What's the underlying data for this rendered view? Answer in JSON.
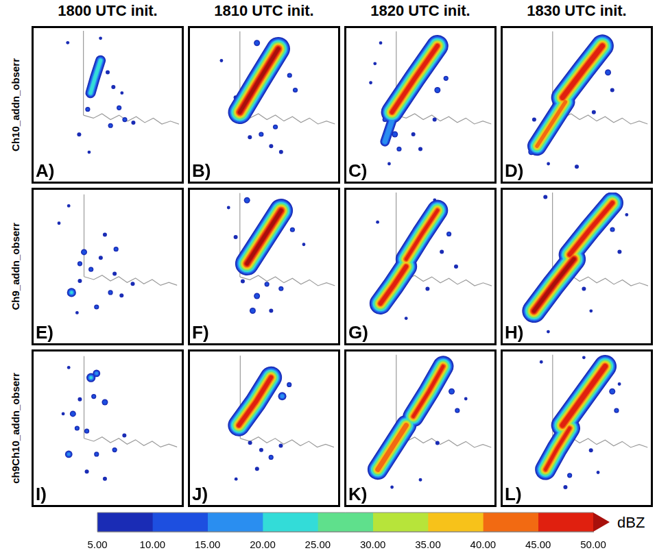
{
  "column_titles": [
    "1800 UTC init.",
    "1810 UTC init.",
    "1820 UTC init.",
    "1830 UTC init."
  ],
  "row_labels": [
    "Ch10_addn_obserr",
    "Ch9_addn_obserr",
    "ch9Ch10_addn_obserr"
  ],
  "map_lines": [
    {
      "x": [
        33,
        33
      ],
      "y": [
        100,
        43
      ]
    },
    {
      "x": [
        33,
        40,
        46,
        52,
        58,
        64,
        70,
        76,
        82,
        88,
        94,
        100
      ],
      "y": [
        43,
        41,
        44,
        40,
        43,
        39,
        42,
        38,
        41,
        37,
        39,
        37
      ]
    }
  ],
  "colorbar": {
    "type": "bar",
    "orientation": "horizontal",
    "title": "dBZ",
    "levels": [
      5,
      10,
      15,
      20,
      25,
      30,
      35,
      40,
      45,
      50
    ],
    "colors": [
      "#1a2cb5",
      "#1d4fe0",
      "#2a8ef0",
      "#33dcd8",
      "#5fe08c",
      "#b7e43a",
      "#f7c21a",
      "#f26a12",
      "#e0200f",
      "#a8100c"
    ],
    "xlim": [
      5,
      50
    ],
    "xticks": [
      {
        "value": 5,
        "label": "5.00"
      },
      {
        "value": 10,
        "label": "10.00"
      },
      {
        "value": 15,
        "label": "15.00"
      },
      {
        "value": 20,
        "label": "20.00"
      },
      {
        "value": 25,
        "label": "25.00"
      },
      {
        "value": 30,
        "label": "30.00"
      },
      {
        "value": 35,
        "label": "35.00"
      },
      {
        "value": 40,
        "label": "40.00"
      },
      {
        "value": 45,
        "label": "45.00"
      },
      {
        "value": 50,
        "label": "50.00"
      }
    ]
  },
  "chart_data": [
    {
      "type": "scatter",
      "panel": "A)",
      "xlim": [
        0,
        100
      ],
      "ylim": [
        0,
        100
      ],
      "tick_labels": false,
      "bands": [
        {
          "x": [
            38,
            41,
            45
          ],
          "y": [
            58,
            68,
            80
          ],
          "max_dbz": 22
        }
      ],
      "cells": [
        {
          "x": 22,
          "y": 92,
          "dbz": 8
        },
        {
          "x": 45,
          "y": 95,
          "dbz": 8
        },
        {
          "x": 36,
          "y": 47,
          "dbz": 12
        },
        {
          "x": 54,
          "y": 62,
          "dbz": 10
        },
        {
          "x": 50,
          "y": 72,
          "dbz": 10
        },
        {
          "x": 58,
          "y": 48,
          "dbz": 12
        },
        {
          "x": 62,
          "y": 40,
          "dbz": 12
        },
        {
          "x": 52,
          "y": 36,
          "dbz": 12
        },
        {
          "x": 68,
          "y": 38,
          "dbz": 10
        },
        {
          "x": 30,
          "y": 30,
          "dbz": 10
        },
        {
          "x": 37,
          "y": 18,
          "dbz": 8
        },
        {
          "x": 60,
          "y": 58,
          "dbz": 8
        }
      ]
    },
    {
      "type": "scatter",
      "panel": "B)",
      "xlim": [
        0,
        100
      ],
      "ylim": [
        0,
        100
      ],
      "tick_labels": false,
      "bands": [
        {
          "x": [
            33,
            46,
            60
          ],
          "y": [
            45,
            66,
            88
          ],
          "max_dbz": 52
        }
      ],
      "cells": [
        {
          "x": 45,
          "y": 92,
          "dbz": 15
        },
        {
          "x": 68,
          "y": 70,
          "dbz": 12
        },
        {
          "x": 72,
          "y": 60,
          "dbz": 12
        },
        {
          "x": 58,
          "y": 35,
          "dbz": 12
        },
        {
          "x": 48,
          "y": 30,
          "dbz": 12
        },
        {
          "x": 40,
          "y": 28,
          "dbz": 10
        },
        {
          "x": 55,
          "y": 22,
          "dbz": 10
        },
        {
          "x": 62,
          "y": 18,
          "dbz": 10
        },
        {
          "x": 20,
          "y": 80,
          "dbz": 8
        },
        {
          "x": 30,
          "y": 55,
          "dbz": 10
        }
      ]
    },
    {
      "type": "scatter",
      "panel": "C)",
      "xlim": [
        0,
        100
      ],
      "ylim": [
        0,
        100
      ],
      "tick_labels": false,
      "bands": [
        {
          "x": [
            30,
            46,
            62
          ],
          "y": [
            45,
            68,
            90
          ],
          "max_dbz": 48
        },
        {
          "x": [
            25,
            32
          ],
          "y": [
            25,
            45
          ],
          "max_dbz": 20
        }
      ],
      "cells": [
        {
          "x": 62,
          "y": 60,
          "dbz": 15
        },
        {
          "x": 68,
          "y": 68,
          "dbz": 12
        },
        {
          "x": 25,
          "y": 40,
          "dbz": 12
        },
        {
          "x": 32,
          "y": 30,
          "dbz": 15
        },
        {
          "x": 35,
          "y": 20,
          "dbz": 12
        },
        {
          "x": 45,
          "y": 30,
          "dbz": 10
        },
        {
          "x": 50,
          "y": 20,
          "dbz": 10
        },
        {
          "x": 60,
          "y": 40,
          "dbz": 10
        },
        {
          "x": 22,
          "y": 92,
          "dbz": 8
        },
        {
          "x": 15,
          "y": 65,
          "dbz": 8
        },
        {
          "x": 18,
          "y": 78,
          "dbz": 8
        },
        {
          "x": 28,
          "y": 10,
          "dbz": 8
        }
      ]
    },
    {
      "type": "scatter",
      "panel": "D)",
      "xlim": [
        0,
        100
      ],
      "ylim": [
        0,
        100
      ],
      "tick_labels": false,
      "bands": [
        {
          "x": [
            40,
            55,
            68
          ],
          "y": [
            55,
            74,
            90
          ],
          "max_dbz": 50
        },
        {
          "x": [
            22,
            32,
            42
          ],
          "y": [
            22,
            37,
            52
          ],
          "max_dbz": 42
        }
      ],
      "cells": [
        {
          "x": 72,
          "y": 72,
          "dbz": 15
        },
        {
          "x": 75,
          "y": 60,
          "dbz": 10
        },
        {
          "x": 20,
          "y": 40,
          "dbz": 10
        },
        {
          "x": 18,
          "y": 18,
          "dbz": 15
        },
        {
          "x": 30,
          "y": 10,
          "dbz": 8
        },
        {
          "x": 50,
          "y": 8,
          "dbz": 10
        },
        {
          "x": 70,
          "y": 95,
          "dbz": 8
        },
        {
          "x": 62,
          "y": 45,
          "dbz": 10
        }
      ]
    },
    {
      "type": "scatter",
      "panel": "E)",
      "xlim": [
        0,
        100
      ],
      "ylim": [
        0,
        100
      ],
      "tick_labels": false,
      "bands": [],
      "cells": [
        {
          "x": 22,
          "y": 92,
          "dbz": 8
        },
        {
          "x": 33,
          "y": 60,
          "dbz": 15
        },
        {
          "x": 30,
          "y": 52,
          "dbz": 12
        },
        {
          "x": 38,
          "y": 48,
          "dbz": 12
        },
        {
          "x": 45,
          "y": 56,
          "dbz": 10
        },
        {
          "x": 56,
          "y": 62,
          "dbz": 12
        },
        {
          "x": 48,
          "y": 72,
          "dbz": 10
        },
        {
          "x": 30,
          "y": 40,
          "dbz": 10
        },
        {
          "x": 24,
          "y": 32,
          "dbz": 22
        },
        {
          "x": 42,
          "y": 22,
          "dbz": 12
        },
        {
          "x": 52,
          "y": 32,
          "dbz": 12
        },
        {
          "x": 60,
          "y": 30,
          "dbz": 10
        },
        {
          "x": 55,
          "y": 45,
          "dbz": 10
        },
        {
          "x": 68,
          "y": 38,
          "dbz": 10
        },
        {
          "x": 15,
          "y": 80,
          "dbz": 8
        },
        {
          "x": 28,
          "y": 18,
          "dbz": 8
        }
      ]
    },
    {
      "type": "scatter",
      "panel": "F)",
      "xlim": [
        0,
        100
      ],
      "ylim": [
        0,
        100
      ],
      "tick_labels": false,
      "bands": [
        {
          "x": [
            38,
            50,
            62
          ],
          "y": [
            52,
            70,
            88
          ],
          "max_dbz": 52
        }
      ],
      "cells": [
        {
          "x": 38,
          "y": 95,
          "dbz": 15
        },
        {
          "x": 70,
          "y": 75,
          "dbz": 12
        },
        {
          "x": 78,
          "y": 65,
          "dbz": 8
        },
        {
          "x": 52,
          "y": 38,
          "dbz": 12
        },
        {
          "x": 62,
          "y": 35,
          "dbz": 12
        },
        {
          "x": 45,
          "y": 30,
          "dbz": 15
        },
        {
          "x": 42,
          "y": 20,
          "dbz": 15
        },
        {
          "x": 35,
          "y": 40,
          "dbz": 10
        },
        {
          "x": 55,
          "y": 20,
          "dbz": 10
        },
        {
          "x": 25,
          "y": 90,
          "dbz": 8
        },
        {
          "x": 30,
          "y": 70,
          "dbz": 10
        }
      ]
    },
    {
      "type": "scatter",
      "panel": "G)",
      "xlim": [
        0,
        100
      ],
      "ylim": [
        0,
        100
      ],
      "tick_labels": false,
      "bands": [
        {
          "x": [
            40,
            51,
            62
          ],
          "y": [
            55,
            72,
            88
          ],
          "max_dbz": 46
        },
        {
          "x": [
            22,
            31,
            40
          ],
          "y": [
            25,
            37,
            50
          ],
          "max_dbz": 48
        }
      ],
      "cells": [
        {
          "x": 70,
          "y": 72,
          "dbz": 12
        },
        {
          "x": 65,
          "y": 60,
          "dbz": 10
        },
        {
          "x": 55,
          "y": 35,
          "dbz": 10
        },
        {
          "x": 40,
          "y": 15,
          "dbz": 8
        },
        {
          "x": 20,
          "y": 80,
          "dbz": 8
        },
        {
          "x": 60,
          "y": 95,
          "dbz": 8
        },
        {
          "x": 75,
          "y": 50,
          "dbz": 10
        }
      ]
    },
    {
      "type": "scatter",
      "panel": "H)",
      "xlim": [
        0,
        100
      ],
      "ylim": [
        0,
        100
      ],
      "tick_labels": false,
      "bands": [
        {
          "x": [
            45,
            60,
            75
          ],
          "y": [
            58,
            76,
            93
          ],
          "max_dbz": 48
        },
        {
          "x": [
            20,
            34,
            48
          ],
          "y": [
            20,
            38,
            55
          ],
          "max_dbz": 52
        }
      ],
      "cells": [
        {
          "x": 28,
          "y": 97,
          "dbz": 10
        },
        {
          "x": 75,
          "y": 75,
          "dbz": 12
        },
        {
          "x": 80,
          "y": 60,
          "dbz": 10
        },
        {
          "x": 55,
          "y": 35,
          "dbz": 10
        },
        {
          "x": 60,
          "y": 20,
          "dbz": 8
        },
        {
          "x": 30,
          "y": 6,
          "dbz": 8
        },
        {
          "x": 85,
          "y": 85,
          "dbz": 8
        }
      ]
    },
    {
      "type": "scatter",
      "panel": "I)",
      "xlim": [
        0,
        100
      ],
      "ylim": [
        0,
        100
      ],
      "tick_labels": false,
      "bands": [],
      "cells": [
        {
          "x": 22,
          "y": 92,
          "dbz": 8
        },
        {
          "x": 38,
          "y": 85,
          "dbz": 22
        },
        {
          "x": 42,
          "y": 88,
          "dbz": 18
        },
        {
          "x": 40,
          "y": 72,
          "dbz": 12
        },
        {
          "x": 48,
          "y": 68,
          "dbz": 15
        },
        {
          "x": 25,
          "y": 60,
          "dbz": 15
        },
        {
          "x": 28,
          "y": 50,
          "dbz": 12
        },
        {
          "x": 35,
          "y": 48,
          "dbz": 12
        },
        {
          "x": 22,
          "y": 32,
          "dbz": 18
        },
        {
          "x": 42,
          "y": 32,
          "dbz": 12
        },
        {
          "x": 55,
          "y": 35,
          "dbz": 12
        },
        {
          "x": 30,
          "y": 70,
          "dbz": 10
        },
        {
          "x": 48,
          "y": 15,
          "dbz": 10
        },
        {
          "x": 35,
          "y": 20,
          "dbz": 10
        },
        {
          "x": 62,
          "y": 45,
          "dbz": 10
        },
        {
          "x": 18,
          "y": 60,
          "dbz": 8
        }
      ]
    },
    {
      "type": "scatter",
      "panel": "J)",
      "xlim": [
        0,
        100
      ],
      "ylim": [
        0,
        100
      ],
      "tick_labels": false,
      "bands": [
        {
          "x": [
            32,
            44,
            55
          ],
          "y": [
            52,
            68,
            85
          ],
          "max_dbz": 48
        }
      ],
      "cells": [
        {
          "x": 63,
          "y": 72,
          "dbz": 20
        },
        {
          "x": 68,
          "y": 80,
          "dbz": 12
        },
        {
          "x": 55,
          "y": 30,
          "dbz": 12
        },
        {
          "x": 62,
          "y": 38,
          "dbz": 10
        },
        {
          "x": 48,
          "y": 35,
          "dbz": 10
        },
        {
          "x": 40,
          "y": 40,
          "dbz": 10
        },
        {
          "x": 30,
          "y": 15,
          "dbz": 8
        },
        {
          "x": 45,
          "y": 22,
          "dbz": 10
        },
        {
          "x": 35,
          "y": 65,
          "dbz": 10
        }
      ]
    },
    {
      "type": "scatter",
      "panel": "K)",
      "xlim": [
        0,
        100
      ],
      "ylim": [
        0,
        100
      ],
      "tick_labels": false,
      "bands": [
        {
          "x": [
            45,
            56,
            66
          ],
          "y": [
            58,
            75,
            92
          ],
          "max_dbz": 46
        },
        {
          "x": [
            20,
            30,
            40
          ],
          "y": [
            22,
            37,
            52
          ],
          "max_dbz": 45
        }
      ],
      "cells": [
        {
          "x": 72,
          "y": 75,
          "dbz": 15
        },
        {
          "x": 76,
          "y": 62,
          "dbz": 12
        },
        {
          "x": 62,
          "y": 40,
          "dbz": 10
        },
        {
          "x": 50,
          "y": 15,
          "dbz": 8
        },
        {
          "x": 30,
          "y": 10,
          "dbz": 8
        },
        {
          "x": 82,
          "y": 70,
          "dbz": 8
        }
      ]
    },
    {
      "type": "scatter",
      "panel": "L)",
      "xlim": [
        0,
        100
      ],
      "ylim": [
        0,
        100
      ],
      "tick_labels": false,
      "bands": [
        {
          "x": [
            40,
            55,
            70
          ],
          "y": [
            52,
            72,
            92
          ],
          "max_dbz": 50
        },
        {
          "x": [
            28,
            36,
            45
          ],
          "y": [
            22,
            36,
            50
          ],
          "max_dbz": 46
        }
      ],
      "cells": [
        {
          "x": 75,
          "y": 75,
          "dbz": 15
        },
        {
          "x": 78,
          "y": 62,
          "dbz": 12
        },
        {
          "x": 25,
          "y": 95,
          "dbz": 8
        },
        {
          "x": 55,
          "y": 98,
          "dbz": 8
        },
        {
          "x": 60,
          "y": 35,
          "dbz": 10
        },
        {
          "x": 45,
          "y": 18,
          "dbz": 12
        },
        {
          "x": 65,
          "y": 20,
          "dbz": 8
        },
        {
          "x": 80,
          "y": 80,
          "dbz": 8
        },
        {
          "x": 42,
          "y": 10,
          "dbz": 10
        }
      ]
    }
  ]
}
